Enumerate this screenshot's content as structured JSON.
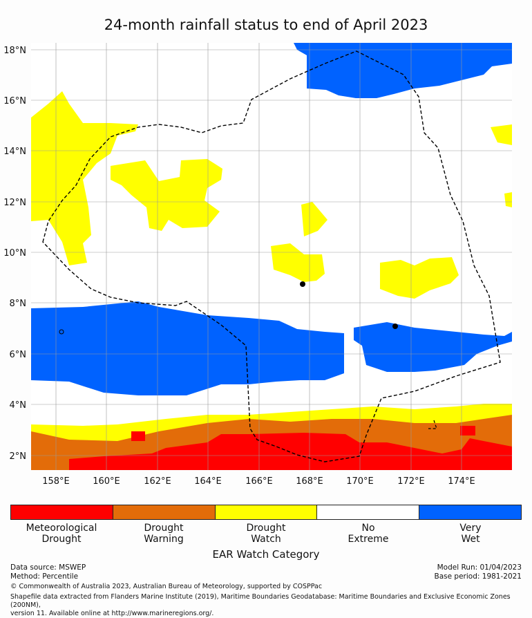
{
  "title": "24-month rainfall status to end of April 2023",
  "map": {
    "lat_labels": [
      "18°N",
      "16°N",
      "14°N",
      "12°N",
      "10°N",
      "8°N",
      "6°N",
      "4°N",
      "2°N"
    ],
    "lon_labels": [
      "158°E",
      "160°E",
      "162°E",
      "164°E",
      "166°E",
      "168°E",
      "170°E",
      "172°E",
      "174°E"
    ],
    "extent": {
      "lon_min": 157,
      "lon_max": 176,
      "lat_min": 1.4,
      "lat_max": 18.4
    },
    "colors": {
      "very_wet": "#0062ff",
      "watch": "#ffff00",
      "warning": "#e36c09",
      "met_drought": "#ff0000",
      "boundary": "#000000"
    }
  },
  "legend": {
    "title": "EAR Watch Category",
    "items": [
      {
        "label": "Meteorological\nDrought",
        "color": "#ff0000"
      },
      {
        "label": "Drought\nWarning",
        "color": "#e36c09"
      },
      {
        "label": "Drought\nWatch",
        "color": "#ffff00"
      },
      {
        "label": "No\nExtreme",
        "color": "#ffffff"
      },
      {
        "label": "Very\nWet",
        "color": "#0062ff"
      }
    ]
  },
  "footer": {
    "data_source": "Data source: MSWEP",
    "method": "Method: Percentile",
    "model_run": "Model Run: 01/04/2023",
    "base_period": "Base period: 1981-2021",
    "copyright": "© Commonwealth of Australia 2023, Australian Bureau of Meteorology, supported by COSPPac",
    "shapefile_line1": "Shapefile data extracted from Flanders Marine Institute (2019), Maritime Boundaries Geodatabase: Maritime Boundaries and Exclusive Economic Zones (200NM),",
    "shapefile_line2": "version 11. Available online at http://www.marineregions.org/."
  }
}
